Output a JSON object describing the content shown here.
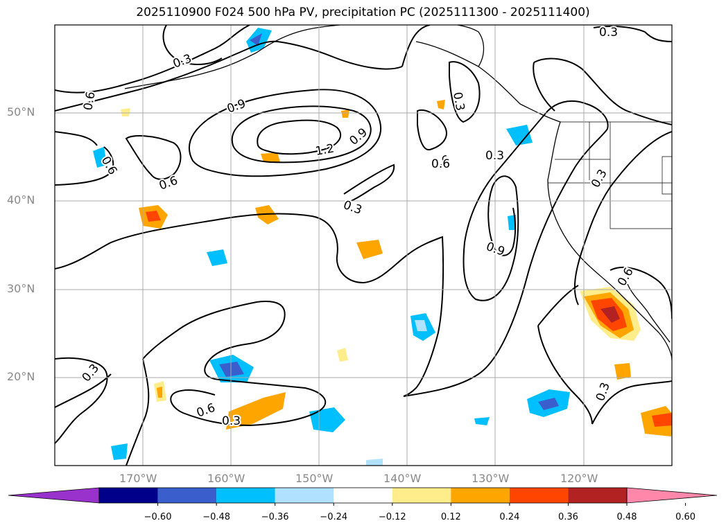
{
  "title": "2025110900 F024 500 hPa PV, precipitation PC (2025111300 - 2025111400)",
  "map": {
    "projection": "lat-lon",
    "lon_range": [
      -180,
      -110
    ],
    "lat_range": [
      10,
      60
    ],
    "grid": true,
    "lon_ticks": [
      "170°W",
      "160°W",
      "150°W",
      "140°W",
      "130°W",
      "120°W"
    ],
    "lat_ticks": [
      "50°N",
      "40°N",
      "30°N",
      "20°N"
    ]
  },
  "contours": {
    "variable": "500 hPa PV",
    "labels": [
      "0.3",
      "0.6",
      "0.9",
      "1.2",
      "0.9",
      "0.6",
      "0.6",
      "0.6",
      "0.3",
      "0.3",
      "0.6",
      "0.9",
      "0.3",
      "0.3",
      "0.3",
      "0.6",
      "0.3",
      "0.3",
      "0.6",
      "0.3"
    ]
  },
  "colorbar": {
    "variable": "precipitation PC",
    "extend": "both",
    "colors": [
      "#9932cc",
      "#00008b",
      "#3a5fcd",
      "#00bfff",
      "#b0e2ff",
      "#ffffff",
      "#ffec8b",
      "#ffa500",
      "#ff4500",
      "#b22222",
      "#ff88aa"
    ],
    "ticks": [
      "−0.60",
      "−0.48",
      "−0.36",
      "−0.24",
      "−0.12",
      "0.12",
      "0.24",
      "0.36",
      "0.48",
      "0.60"
    ]
  }
}
